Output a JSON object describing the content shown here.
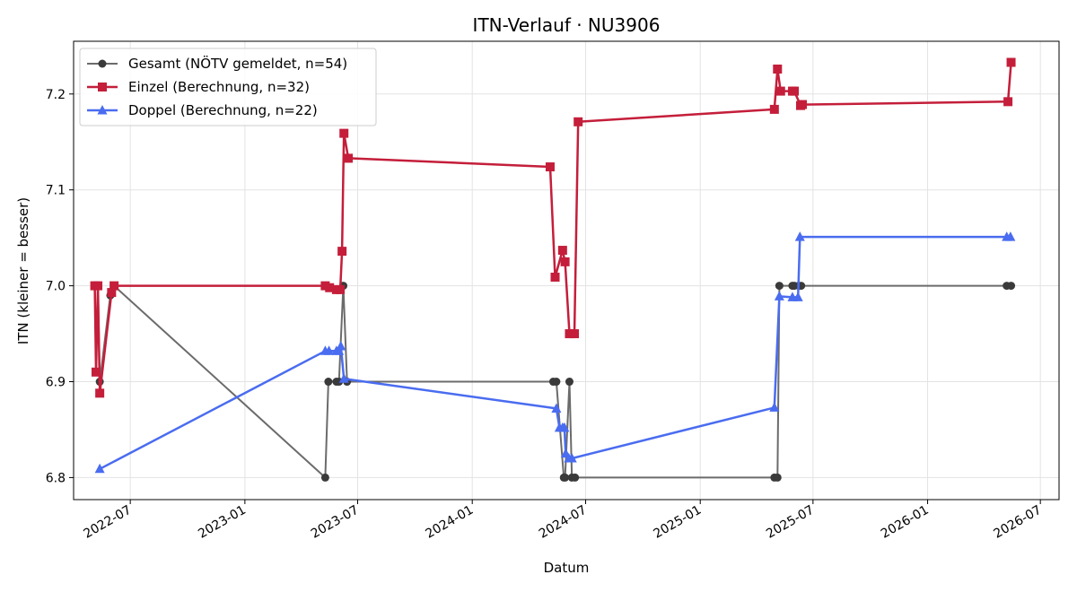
{
  "chart_data": {
    "type": "line",
    "title": "ITN-Verlauf · NU3906",
    "xlabel": "Datum",
    "ylabel": "ITN  (kleiner = besser)",
    "x_is_date": true,
    "xlim": [
      "2022-04-01",
      "2026-07-31"
    ],
    "ylim": [
      6.777,
      7.255
    ],
    "yticks": [
      6.8,
      6.9,
      7.0,
      7.1,
      7.2
    ],
    "ytick_labels": [
      "6.8",
      "6.9",
      "7.0",
      "7.1",
      "7.2"
    ],
    "xticks": [
      "2022-07-01",
      "2023-01-01",
      "2023-07-01",
      "2024-01-01",
      "2024-07-01",
      "2025-01-01",
      "2025-07-01",
      "2026-01-01",
      "2026-07-01"
    ],
    "xtick_labels": [
      "2022-07",
      "2023-01",
      "2023-07",
      "2024-01",
      "2024-07",
      "2025-01",
      "2025-07",
      "2026-01",
      "2026-07"
    ],
    "grid": true,
    "legend_position": "upper-left",
    "series": [
      {
        "name": "Gesamt (NÖTV gemeldet, n=54)",
        "color": "#6b6b6b",
        "marker_color": "#3a3a3a",
        "marker": "circle",
        "linewidth": 2,
        "x": [
          "2022-05-06",
          "2022-05-10",
          "2022-05-13",
          "2022-05-30",
          "2022-06-05",
          "2023-05-10",
          "2023-05-15",
          "2023-05-28",
          "2023-06-01",
          "2023-06-08",
          "2023-06-14",
          "2024-05-10",
          "2024-05-15",
          "2024-05-27",
          "2024-05-29",
          "2024-06-05",
          "2024-06-09",
          "2024-06-14",
          "2025-04-30",
          "2025-05-05",
          "2025-05-08",
          "2025-05-29",
          "2025-06-01",
          "2025-06-08",
          "2025-06-12",
          "2026-05-08",
          "2026-05-15"
        ],
        "y": [
          7.0,
          7.0,
          6.9,
          6.99,
          7.0,
          6.8,
          6.9,
          6.9,
          6.9,
          7.0,
          6.9,
          6.9,
          6.9,
          6.8,
          6.8,
          6.9,
          6.8,
          6.8,
          6.8,
          6.8,
          7.0,
          7.0,
          7.0,
          7.0,
          7.0,
          7.0,
          7.0
        ]
      },
      {
        "name": "Einzel (Berechnung, n=32)",
        "color": "#c41e3a",
        "marker": "square",
        "linewidth": 2.5,
        "x": [
          "2022-05-05",
          "2022-05-07",
          "2022-05-10",
          "2022-05-13",
          "2022-06-01",
          "2022-06-05",
          "2023-05-10",
          "2023-05-17",
          "2023-05-28",
          "2023-06-03",
          "2023-06-06",
          "2023-06-09",
          "2023-06-16",
          "2024-05-05",
          "2024-05-13",
          "2024-05-25",
          "2024-05-29",
          "2024-06-05",
          "2024-06-13",
          "2024-06-19",
          "2025-04-30",
          "2025-05-05",
          "2025-05-10",
          "2025-05-29",
          "2025-06-01",
          "2025-06-11",
          "2025-06-14",
          "2026-05-10",
          "2026-05-15"
        ],
        "y": [
          7.0,
          6.91,
          7.0,
          6.888,
          6.993,
          7.0,
          7.0,
          6.998,
          6.996,
          6.996,
          7.036,
          7.159,
          7.133,
          7.124,
          7.009,
          7.037,
          7.025,
          6.95,
          6.95,
          7.171,
          7.184,
          7.226,
          7.203,
          7.203,
          7.203,
          7.188,
          7.189,
          7.192,
          7.233
        ]
      },
      {
        "name": "Doppel (Berechnung, n=22)",
        "color": "#4a6cf0",
        "marker": "triangle",
        "linewidth": 2.5,
        "x": [
          "2022-05-13",
          "2023-05-10",
          "2023-05-16",
          "2023-05-28",
          "2023-06-01",
          "2023-06-04",
          "2023-06-09",
          "2024-05-15",
          "2024-05-20",
          "2024-05-25",
          "2024-05-28",
          "2024-05-30",
          "2024-06-04",
          "2024-06-09",
          "2025-04-30",
          "2025-05-08",
          "2025-05-29",
          "2025-06-07",
          "2025-06-10",
          "2026-05-08",
          "2026-05-14"
        ],
        "y": [
          6.809,
          6.932,
          6.932,
          6.932,
          6.932,
          6.937,
          6.903,
          6.872,
          6.852,
          6.852,
          6.852,
          6.825,
          6.82,
          6.82,
          6.873,
          6.989,
          6.988,
          6.988,
          7.051,
          7.051,
          7.051
        ]
      }
    ]
  }
}
